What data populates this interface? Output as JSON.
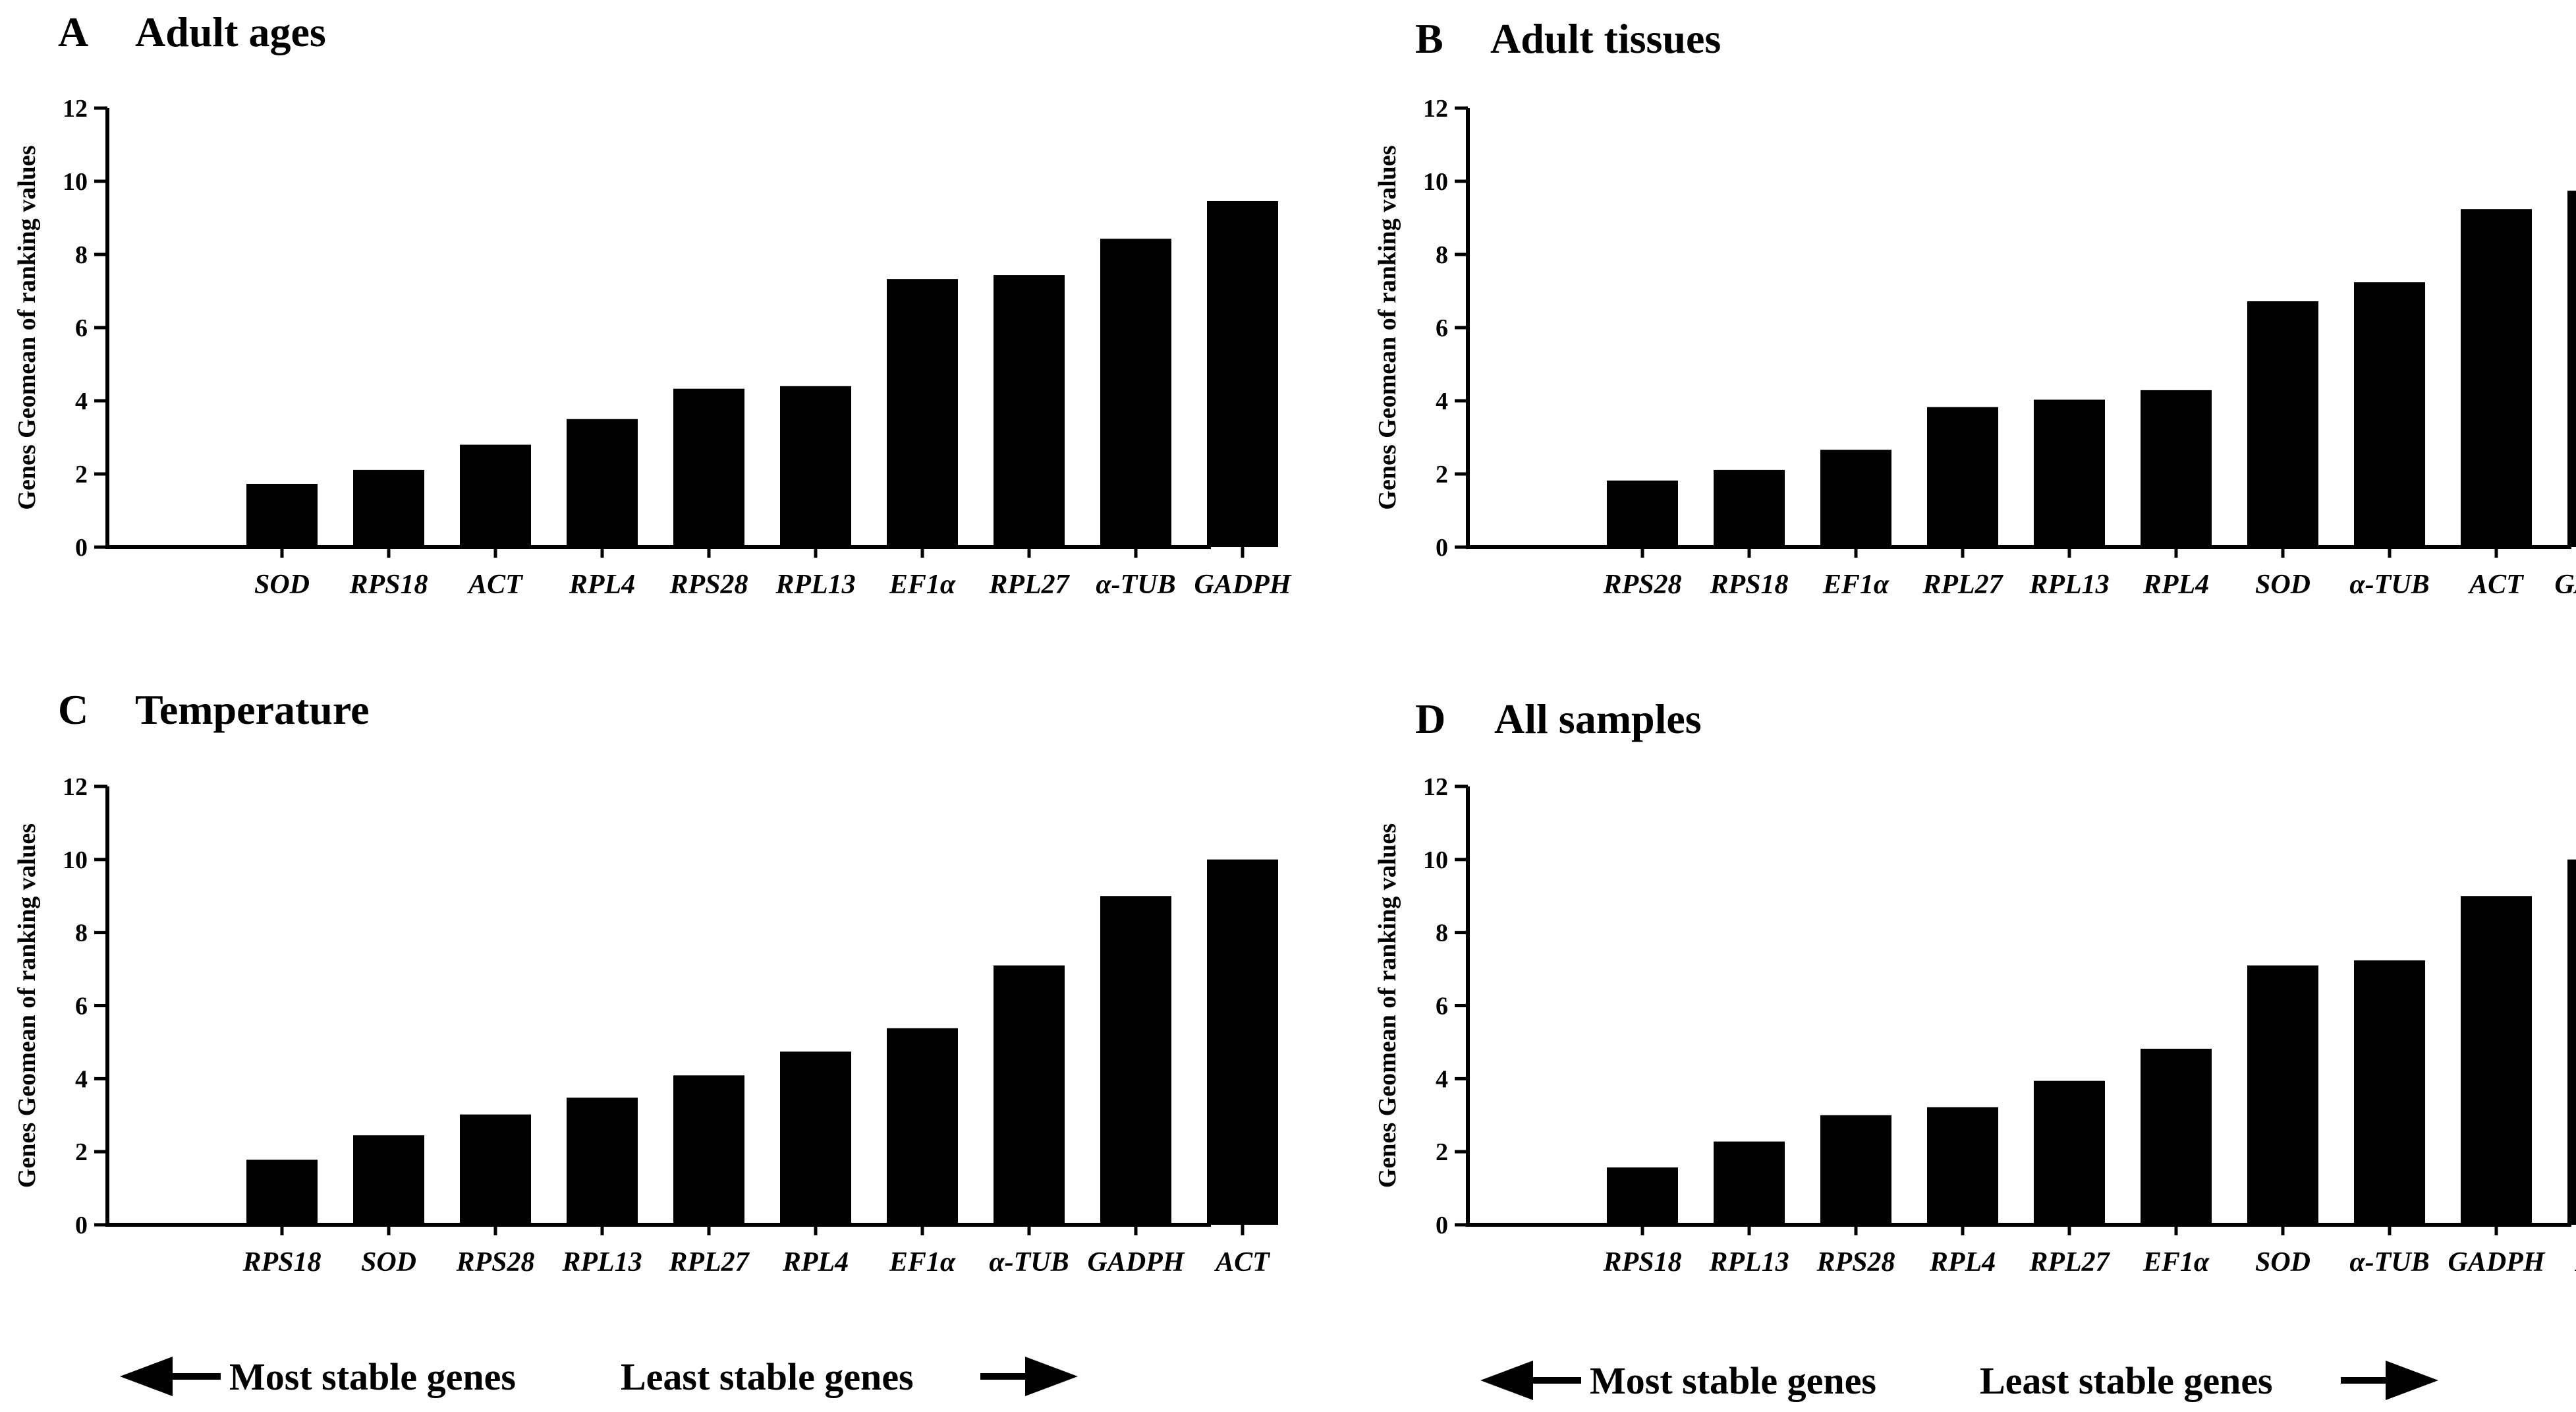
{
  "chart_data": [
    {
      "type": "bar",
      "panel": "A",
      "title": "Adult ages",
      "ylabel": "Genes Geomean of ranking values",
      "xlabel": "",
      "ylim": [
        0,
        12
      ],
      "yticks": [
        0,
        2,
        4,
        6,
        8,
        10,
        12
      ],
      "categories": [
        "SOD",
        "RPS18",
        "ACT",
        "RPL4",
        "RPS28",
        "RPL13",
        "EF1α",
        "RPL27",
        "α-TUB",
        "GADPH"
      ],
      "values": [
        1.73,
        2.11,
        2.8,
        3.5,
        4.33,
        4.4,
        7.33,
        7.44,
        8.43,
        9.46
      ]
    },
    {
      "type": "bar",
      "panel": "B",
      "title": "Adult tissues",
      "ylabel": "Genes Geomean of ranking values",
      "xlabel": "",
      "ylim": [
        0,
        12
      ],
      "yticks": [
        0,
        2,
        4,
        6,
        8,
        10,
        12
      ],
      "categories": [
        "RPS28",
        "RPS18",
        "EF1α",
        "RPL27",
        "RPL13",
        "RPL4",
        "SOD",
        "α-TUB",
        "ACT",
        "GADPH"
      ],
      "values": [
        1.82,
        2.11,
        2.66,
        3.83,
        4.03,
        4.29,
        6.72,
        7.24,
        9.24,
        9.74
      ]
    },
    {
      "type": "bar",
      "panel": "C",
      "title": "Temperature",
      "ylabel": "Genes Geomean of ranking values",
      "xlabel": "",
      "ylim": [
        0,
        12
      ],
      "yticks": [
        0,
        2,
        4,
        6,
        8,
        10,
        12
      ],
      "categories": [
        "RPS18",
        "SOD",
        "RPS28",
        "RPL13",
        "RPL27",
        "RPL4",
        "EF1α",
        "α-TUB",
        "GADPH",
        "ACT"
      ],
      "values": [
        1.78,
        2.45,
        3.02,
        3.48,
        4.09,
        4.74,
        5.38,
        7.1,
        9.0,
        10.0
      ]
    },
    {
      "type": "bar",
      "panel": "D",
      "title": "All samples",
      "ylabel": "Genes Geomean of ranking values",
      "xlabel": "",
      "ylim": [
        0,
        12
      ],
      "yticks": [
        0,
        2,
        4,
        6,
        8,
        10,
        12
      ],
      "categories": [
        "RPS18",
        "RPL13",
        "RPS28",
        "RPL4",
        "RPL27",
        "EF1α",
        "SOD",
        "α-TUB",
        "GADPH",
        "ACT"
      ],
      "values": [
        1.57,
        2.28,
        3.0,
        3.22,
        3.94,
        4.82,
        7.1,
        7.24,
        9.0,
        10.0
      ]
    }
  ],
  "legend": {
    "most_stable": "Most stable genes",
    "least_stable": "Least stable genes"
  },
  "colors": {
    "bar": "#000000",
    "axis": "#000000",
    "background": "#ffffff"
  }
}
